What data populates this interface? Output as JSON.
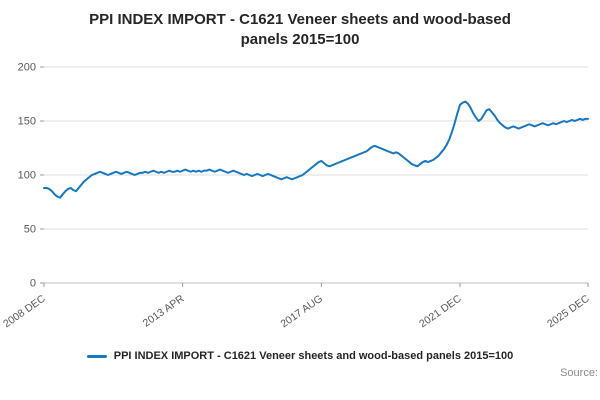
{
  "title": "PPI INDEX IMPORT - C1621 Veneer sheets and wood-based panels 2015=100",
  "legend": {
    "label": "PPI INDEX IMPORT - C1621 Veneer sheets and wood-based panels 2015=100"
  },
  "source_label": "Source:",
  "chart_data": {
    "type": "line",
    "title": "PPI INDEX IMPORT - C1621 Veneer sheets and wood-based panels 2015=100",
    "xlabel": "",
    "ylabel": "",
    "ylim": [
      0,
      200
    ],
    "yticks": [
      0,
      50,
      100,
      150,
      200
    ],
    "grid": true,
    "legend_position": "bottom",
    "x_unit": "month",
    "x_ticks": [
      {
        "label": "2008 DEC",
        "index": 0
      },
      {
        "label": "2013 APR",
        "index": 52
      },
      {
        "label": "2017 AUG",
        "index": 104
      },
      {
        "label": "2021 DEC",
        "index": 156
      },
      {
        "label": "2025 DEC",
        "index": 204
      }
    ],
    "series": [
      {
        "name": "PPI INDEX IMPORT - C1621 Veneer sheets and wood-based panels 2015=100",
        "color": "#1878bf",
        "values": [
          88,
          88,
          87,
          85,
          82,
          80,
          79,
          82,
          85,
          87,
          88,
          86,
          85,
          88,
          91,
          94,
          96,
          98,
          100,
          101,
          102,
          103,
          102,
          101,
          100,
          101,
          102,
          103,
          102,
          101,
          102,
          103,
          102,
          101,
          100,
          101,
          102,
          102,
          103,
          102,
          103,
          104,
          103,
          102,
          103,
          102,
          103,
          104,
          103,
          103,
          104,
          103,
          104,
          105,
          104,
          103,
          104,
          103,
          104,
          103,
          104,
          104,
          105,
          104,
          103,
          104,
          105,
          104,
          103,
          102,
          103,
          104,
          103,
          102,
          101,
          100,
          101,
          100,
          99,
          100,
          101,
          100,
          99,
          100,
          101,
          100,
          99,
          98,
          97,
          96,
          97,
          98,
          97,
          96,
          97,
          98,
          99,
          100,
          102,
          104,
          106,
          108,
          110,
          112,
          113,
          111,
          109,
          108,
          109,
          110,
          111,
          112,
          113,
          114,
          115,
          116,
          117,
          118,
          119,
          120,
          121,
          122,
          124,
          126,
          127,
          126,
          125,
          124,
          123,
          122,
          121,
          120,
          121,
          120,
          118,
          116,
          114,
          112,
          110,
          109,
          108,
          110,
          112,
          113,
          112,
          113,
          114,
          116,
          118,
          121,
          124,
          128,
          133,
          140,
          148,
          157,
          165,
          167,
          168,
          166,
          162,
          157,
          153,
          150,
          152,
          156,
          160,
          161,
          158,
          155,
          151,
          148,
          146,
          144,
          143,
          144,
          145,
          144,
          143,
          144,
          145,
          146,
          147,
          146,
          145,
          146,
          147,
          148,
          147,
          146,
          147,
          148,
          147,
          148,
          149,
          150,
          149,
          150,
          151,
          150,
          151,
          152,
          151,
          152,
          152
        ]
      }
    ]
  }
}
